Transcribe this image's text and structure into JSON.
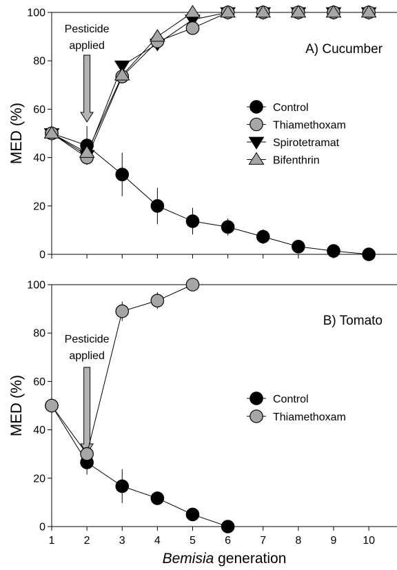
{
  "x_axis_label": {
    "italic": "Bemisia",
    "rest": " generation"
  },
  "chart_data": [
    {
      "type": "line",
      "title": "A) Cucumber",
      "ylabel": "MED (%)",
      "xlabel": "Bemisia generation",
      "xlim": [
        1,
        10.8
      ],
      "ylim": [
        0,
        100
      ],
      "yticks": [
        0,
        20,
        40,
        60,
        80,
        100
      ],
      "xticks": [
        1,
        2,
        3,
        4,
        5,
        6,
        7,
        8,
        9,
        10
      ],
      "grid": false,
      "legend_position": "center-right",
      "annotation": {
        "lines": [
          "Pesticide",
          "applied"
        ],
        "x": 2
      },
      "series": [
        {
          "name": "Control",
          "marker": "circle",
          "color": "#000000",
          "x": [
            1,
            2,
            3,
            4,
            5,
            6,
            7,
            8,
            9,
            10
          ],
          "y": [
            50,
            45,
            33,
            20,
            13.7,
            11.3,
            7.3,
            3.2,
            1.4,
            0
          ],
          "err": [
            2,
            8,
            9,
            7.5,
            5.5,
            3.5,
            3,
            1.5,
            1.5,
            0
          ]
        },
        {
          "name": "Thiamethoxam",
          "marker": "circle",
          "color": "#a6a6a6",
          "x": [
            1,
            2,
            3,
            4,
            5,
            6,
            7,
            8,
            9,
            10
          ],
          "y": [
            50,
            40,
            73.5,
            88,
            93.5,
            100,
            100,
            100,
            100,
            100
          ],
          "err": [
            2,
            3,
            2.5,
            2.5,
            2,
            0,
            0,
            0,
            0,
            0
          ]
        },
        {
          "name": "Spirotetramat",
          "marker": "triangle-down",
          "color": "#000000",
          "x": [
            1,
            2,
            3,
            4,
            5,
            6,
            7,
            8,
            9,
            10
          ],
          "y": [
            50,
            41,
            78,
            87,
            97,
            100,
            100,
            100,
            100,
            100
          ],
          "err": [
            0,
            0,
            0,
            0,
            0,
            0,
            0,
            0,
            0,
            0
          ]
        },
        {
          "name": "Bifenthrin",
          "marker": "triangle-up",
          "color": "#a6a6a6",
          "x": [
            1,
            2,
            3,
            4,
            5,
            6,
            7,
            8,
            9,
            10
          ],
          "y": [
            50,
            42,
            74,
            90,
            100,
            100,
            100,
            100,
            100,
            100
          ],
          "err": [
            0,
            0,
            0,
            0,
            0,
            0,
            0,
            0,
            0,
            0
          ]
        }
      ]
    },
    {
      "type": "line",
      "title": "B) Tomato",
      "ylabel": "MED (%)",
      "xlabel": "Bemisia generation",
      "xlim": [
        1,
        10.8
      ],
      "ylim": [
        0,
        100
      ],
      "yticks": [
        0,
        20,
        40,
        60,
        80,
        100
      ],
      "xticks": [
        1,
        2,
        3,
        4,
        5,
        6,
        7,
        8,
        9,
        10
      ],
      "grid": false,
      "legend_position": "center-right",
      "annotation": {
        "lines": [
          "Pesticide",
          "applied"
        ],
        "x": 2
      },
      "series": [
        {
          "name": "Control",
          "marker": "circle",
          "color": "#000000",
          "x": [
            1,
            2,
            3,
            4,
            5,
            6
          ],
          "y": [
            50,
            26.5,
            16.7,
            11.7,
            5,
            0
          ],
          "err": [
            2,
            5,
            7,
            2.5,
            2,
            0
          ]
        },
        {
          "name": "Thiamethoxam",
          "marker": "circle",
          "color": "#a6a6a6",
          "x": [
            1,
            2,
            3,
            4,
            5
          ],
          "y": [
            50,
            30,
            89,
            93.4,
            100
          ],
          "err": [
            2,
            3,
            4,
            3.5,
            0
          ]
        }
      ]
    }
  ]
}
